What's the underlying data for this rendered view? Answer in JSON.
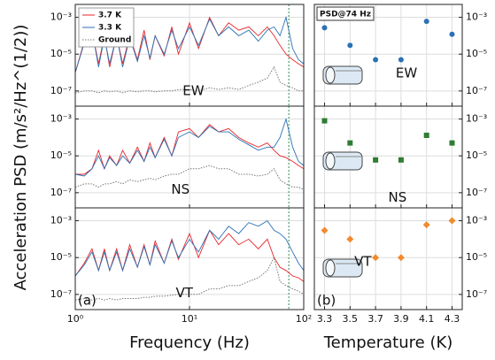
{
  "chart_data": [
    {
      "type": "line",
      "ylabel": "Acceleration PSD (m/s²/Hz^(1/2))",
      "annotation": "EW",
      "xscale": "log",
      "yscale": "log",
      "grid": true,
      "legend": "upper left",
      "vline": 74,
      "vline_color": "#2e8b57",
      "xlim": [
        1,
        100
      ],
      "xticks": [
        {
          "value": 1,
          "label": "10⁰"
        },
        {
          "value": 10,
          "label": "10¹"
        },
        {
          "value": 100,
          "label": "10²"
        }
      ],
      "ylim": [
        1.5e-08,
        0.005
      ],
      "yticks": [
        {
          "value": 1e-07,
          "label": "10⁻⁷"
        },
        {
          "value": 1e-05,
          "label": "10⁻⁵"
        },
        {
          "value": 0.001,
          "label": "10⁻³"
        }
      ],
      "x": [
        1,
        1.2,
        1.4,
        1.6,
        1.8,
        2,
        2.3,
        2.6,
        3,
        3.5,
        4,
        4.5,
        5,
        6,
        7,
        8,
        10,
        12,
        15,
        18,
        22,
        27,
        33,
        40,
        48,
        55,
        62,
        70,
        80,
        90,
        100
      ],
      "series": [
        {
          "name": "3.7 K",
          "color": "#e8262b",
          "values": [
            1e-06,
            5e-05,
            0.0002,
            3e-06,
            0.0001,
            2e-06,
            0.0001,
            3e-06,
            0.0001,
            5e-06,
            0.0002,
            5e-06,
            0.0001,
            8e-06,
            0.0003,
            1e-05,
            0.0005,
            2e-05,
            0.001,
            0.0001,
            0.0005,
            0.0002,
            0.0003,
            0.0001,
            0.0003,
            0.0001,
            3e-05,
            1e-05,
            5e-06,
            3e-06,
            2e-06
          ]
        },
        {
          "name": "3.3 K",
          "color": "#2a72b5",
          "values": [
            1e-06,
            4e-05,
            0.0002,
            2e-06,
            8e-05,
            3e-06,
            0.0001,
            2e-06,
            8e-05,
            4e-06,
            0.0001,
            6e-06,
            0.0001,
            1e-05,
            0.0002,
            2e-05,
            0.0003,
            3e-05,
            0.0008,
            0.0001,
            0.0003,
            0.0001,
            0.0002,
            5e-05,
            0.0002,
            0.0003,
            0.0001,
            0.001,
            2e-05,
            5e-06,
            3e-06
          ]
        },
        {
          "name": "Ground",
          "color": "#777777",
          "linestyle": "dotted",
          "values": [
            8e-08,
            1e-07,
            1e-07,
            8e-08,
            1e-07,
            9e-08,
            1e-07,
            8e-08,
            1e-07,
            9e-08,
            1e-07,
            1e-07,
            9e-08,
            1e-07,
            1e-07,
            1.2e-07,
            1.2e-07,
            1e-07,
            1.5e-07,
            1.2e-07,
            1.5e-07,
            1.2e-07,
            2e-07,
            3e-07,
            5e-07,
            2e-06,
            3e-07,
            2e-07,
            1.5e-07,
            1e-07,
            1e-07
          ]
        }
      ]
    },
    {
      "type": "line",
      "annotation": "NS",
      "xscale": "log",
      "yscale": "log",
      "grid": true,
      "vline": 74,
      "vline_color": "#2e8b57",
      "xlim": [
        1,
        100
      ],
      "xticks": [
        {
          "value": 1,
          "label": "10⁰"
        },
        {
          "value": 10,
          "label": "10¹"
        },
        {
          "value": 100,
          "label": "10²"
        }
      ],
      "ylim": [
        1.5e-08,
        0.005
      ],
      "yticks": [
        {
          "value": 1e-07,
          "label": "10⁻⁷"
        },
        {
          "value": 1e-05,
          "label": "10⁻⁵"
        },
        {
          "value": 0.001,
          "label": "10⁻³"
        }
      ],
      "x": [
        1,
        1.2,
        1.4,
        1.6,
        1.8,
        2,
        2.3,
        2.6,
        3,
        3.5,
        4,
        4.5,
        5,
        6,
        7,
        8,
        10,
        12,
        15,
        18,
        22,
        27,
        33,
        40,
        48,
        55,
        62,
        70,
        80,
        90,
        100
      ],
      "series": [
        {
          "color": "#e8262b",
          "values": [
            1e-06,
            1e-06,
            2e-06,
            2e-05,
            2e-06,
            1e-05,
            3e-06,
            2e-05,
            4e-06,
            3e-05,
            5e-06,
            5e-05,
            8e-06,
            0.0001,
            1e-05,
            0.0002,
            0.0003,
            0.0001,
            0.0005,
            0.0002,
            0.0003,
            0.0001,
            5e-05,
            3e-05,
            5e-05,
            2e-05,
            1e-05,
            8e-06,
            5e-06,
            3e-06,
            2e-06
          ]
        },
        {
          "color": "#2a72b5",
          "values": [
            1e-06,
            8e-07,
            2e-06,
            1e-05,
            2e-06,
            8e-06,
            3e-06,
            1e-05,
            4e-06,
            2e-05,
            5e-06,
            3e-05,
            8e-06,
            8e-05,
            1e-05,
            0.0001,
            0.0002,
            0.0001,
            0.0004,
            0.0002,
            0.0002,
            8e-05,
            4e-05,
            2e-05,
            3e-05,
            3e-05,
            0.0001,
            0.001,
            3e-05,
            5e-06,
            3e-06
          ]
        },
        {
          "color": "#777777",
          "linestyle": "dotted",
          "values": [
            2e-07,
            3e-07,
            3e-07,
            2e-07,
            3e-07,
            3e-07,
            4e-07,
            3e-07,
            5e-07,
            4e-07,
            5e-07,
            6e-07,
            5e-07,
            8e-07,
            1e-06,
            1e-06,
            2e-06,
            2e-06,
            3e-06,
            2e-06,
            2e-06,
            1e-06,
            1e-06,
            8e-07,
            1e-06,
            2e-06,
            5e-07,
            3e-07,
            2e-07,
            2e-07,
            1.5e-07
          ]
        }
      ]
    },
    {
      "type": "line",
      "annotation": "VT",
      "panel_label": "(a)",
      "xlabel": "Frequency (Hz)",
      "xscale": "log",
      "yscale": "log",
      "grid": true,
      "vline": 74,
      "vline_color": "#2e8b57",
      "xlim": [
        1,
        100
      ],
      "xticks": [
        {
          "value": 1,
          "label": "10⁰"
        },
        {
          "value": 10,
          "label": "10¹"
        },
        {
          "value": 100,
          "label": "10²"
        }
      ],
      "ylim": [
        1.5e-08,
        0.005
      ],
      "yticks": [
        {
          "value": 1e-07,
          "label": "10⁻⁷"
        },
        {
          "value": 1e-05,
          "label": "10⁻⁵"
        },
        {
          "value": 0.001,
          "label": "10⁻³"
        }
      ],
      "x": [
        1,
        1.2,
        1.4,
        1.6,
        1.8,
        2,
        2.3,
        2.6,
        3,
        3.5,
        4,
        4.5,
        5,
        6,
        7,
        8,
        10,
        12,
        15,
        18,
        22,
        27,
        33,
        40,
        48,
        55,
        62,
        70,
        80,
        90,
        100
      ],
      "series": [
        {
          "color": "#e8262b",
          "values": [
            1e-06,
            5e-06,
            3e-05,
            2e-06,
            3e-05,
            2e-06,
            3e-05,
            2e-06,
            5e-05,
            3e-06,
            5e-05,
            4e-06,
            8e-05,
            5e-06,
            0.0001,
            8e-06,
            0.0002,
            1e-05,
            0.0003,
            5e-05,
            0.0002,
            5e-05,
            0.0001,
            3e-05,
            0.0001,
            1e-05,
            3e-06,
            2e-06,
            1e-06,
            8e-07,
            5e-07
          ]
        },
        {
          "color": "#2a72b5",
          "values": [
            1e-06,
            4e-06,
            2e-05,
            2e-06,
            2e-05,
            2e-06,
            2e-05,
            2e-06,
            3e-05,
            3e-06,
            4e-05,
            4e-06,
            5e-05,
            5e-06,
            8e-05,
            1e-05,
            0.0001,
            2e-05,
            0.0003,
            0.0001,
            0.0005,
            0.0002,
            0.0008,
            0.0005,
            0.001,
            0.0003,
            0.0002,
            0.0001,
            2e-05,
            5e-06,
            2e-06
          ]
        },
        {
          "color": "#777777",
          "linestyle": "dotted",
          "values": [
            5e-08,
            6e-08,
            5e-08,
            6e-08,
            5e-08,
            6e-08,
            5e-08,
            6e-08,
            6e-08,
            6e-08,
            7e-08,
            7e-08,
            8e-08,
            8e-08,
            9e-08,
            1e-07,
            1e-07,
            1e-07,
            2e-07,
            2e-07,
            3e-07,
            3e-07,
            5e-07,
            8e-07,
            2e-06,
            1e-05,
            5e-07,
            3e-07,
            2e-07,
            1.5e-07,
            1e-07
          ]
        }
      ]
    },
    {
      "type": "scatter",
      "annotation": "EW",
      "annotation_box": "PSD@74 Hz",
      "marker": "circle",
      "color": "#2a72b5",
      "yscale": "log",
      "grid": true,
      "xlim": [
        3.22,
        4.38
      ],
      "xticks": [
        3.3,
        3.5,
        3.7,
        3.9,
        4.1,
        4.3
      ],
      "ylim": [
        1.5e-08,
        0.005
      ],
      "yticks": [
        {
          "value": 1e-07,
          "label": "10⁻⁷"
        },
        {
          "value": 1e-05,
          "label": "10⁻⁵"
        },
        {
          "value": 0.001,
          "label": "10⁻³"
        }
      ],
      "x": [
        3.3,
        3.5,
        3.7,
        3.9,
        4.1,
        4.3
      ],
      "values": [
        0.00027,
        3e-05,
        5e-06,
        5e-06,
        0.0006,
        0.00012
      ]
    },
    {
      "type": "scatter",
      "annotation": "NS",
      "marker": "square",
      "color": "#2e7d32",
      "yscale": "log",
      "grid": true,
      "xlim": [
        3.22,
        4.38
      ],
      "xticks": [
        3.3,
        3.5,
        3.7,
        3.9,
        4.1,
        4.3
      ],
      "ylim": [
        1.5e-08,
        0.005
      ],
      "yticks": [
        {
          "value": 1e-07,
          "label": "10⁻⁷"
        },
        {
          "value": 1e-05,
          "label": "10⁻⁵"
        },
        {
          "value": 0.001,
          "label": "10⁻³"
        }
      ],
      "x": [
        3.3,
        3.5,
        3.7,
        3.9,
        4.1,
        4.3
      ],
      "values": [
        0.0008,
        5e-05,
        6e-06,
        6e-06,
        0.00013,
        5e-05
      ]
    },
    {
      "type": "scatter",
      "annotation": "VT",
      "panel_label": "(b)",
      "xlabel": "Temperature (K)",
      "marker": "diamond",
      "color": "#f28a2e",
      "yscale": "log",
      "grid": true,
      "xlim": [
        3.22,
        4.38
      ],
      "xticks": [
        3.3,
        3.5,
        3.7,
        3.9,
        4.1,
        4.3
      ],
      "ylim": [
        1.5e-08,
        0.005
      ],
      "yticks": [
        {
          "value": 1e-07,
          "label": "10⁻⁷"
        },
        {
          "value": 1e-05,
          "label": "10⁻⁵"
        },
        {
          "value": 0.001,
          "label": "10⁻³"
        }
      ],
      "x": [
        3.3,
        3.5,
        3.7,
        3.9,
        4.1,
        4.3
      ],
      "values": [
        0.0003,
        0.0001,
        1e-05,
        1e-05,
        0.0006,
        0.001
      ]
    }
  ]
}
